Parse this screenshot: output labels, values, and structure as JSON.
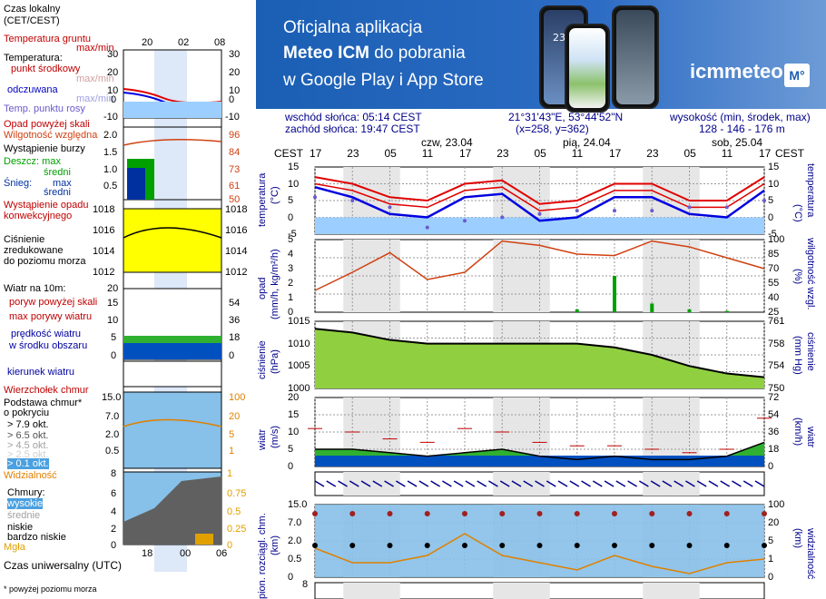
{
  "banner": {
    "line1": "Oficjalna aplikacja",
    "line2_bold": "Meteo ICM",
    "line2_rest": " do pobrania",
    "line3": "w Google Play i App Store",
    "logo_text": "icmmeteo",
    "logo_badge": "M°",
    "phone_temp": "23°",
    "bg_color": "#1f63b8"
  },
  "info": {
    "sunrise": "wschód słońca: 05:14 CEST",
    "sunset": "zachód słońca: 19:47 CEST",
    "coords": "21°31'43\"E, 53°44'52\"N",
    "grid": "(x=258,  y=362)",
    "height_label": "wysokość (min, środek, max)",
    "height_value": "128 - 146 - 176 m"
  },
  "time_axis": {
    "cest_label": "CEST",
    "hours": [
      "17",
      "23",
      "05",
      "11",
      "17",
      "23",
      "05",
      "11",
      "17",
      "23",
      "05",
      "11",
      "17"
    ],
    "days": [
      "czw, 23.04",
      "pią, 24.04",
      "sob, 25.04"
    ]
  },
  "legend": {
    "local_time": "Czas lokalny",
    "local_time_2": "(CET/CEST)",
    "top_ticks": [
      "20",
      "02",
      "08"
    ],
    "temp_ground": "Temperatura gruntu",
    "temp_ground_2": "max/min",
    "temperature": "Temperatura:",
    "mid_point": "punkt środkowy",
    "mid_point_2": "max/min",
    "feels": "odczuwana",
    "feels_2": "max/min",
    "dew": "Temp. punktu rosy",
    "temp_ticks": [
      "30",
      "20",
      "10",
      "0",
      "-10"
    ],
    "precip_over": "Opad powyżej skali",
    "humidity": "Wilgotność względna",
    "storm": "Wystąpienie burzy",
    "rain": "Deszcz: max",
    "rain_mid": "średni",
    "snow": "Śnieg:",
    "snow_max": "max",
    "snow_mid": "średni",
    "precip_occ": "Wystąpienie opadu",
    "precip_occ_2": "konwekcyjnego",
    "precip_ticks": [
      "2.0",
      "1.5",
      "1.0",
      "0.5"
    ],
    "hum_ticks": [
      "96",
      "84",
      "73",
      "61",
      "50"
    ],
    "pressure": "Ciśnienie",
    "pressure_2": "zredukowane",
    "pressure_3": "do poziomu morza",
    "press_ticks": [
      "1018",
      "1016",
      "1014",
      "1012"
    ],
    "wind_at": "Wiatr na 10m:",
    "gust_over": "poryw powyżej skali",
    "gust_max": "max porywy wiatru",
    "wind_speed": "prędkość wiatru",
    "wind_speed_2": "w środku obszaru",
    "wind_ticks": [
      "20",
      "15",
      "10",
      "5",
      "0"
    ],
    "wind_ticks_r": [
      "72",
      "54",
      "36",
      "18",
      "0"
    ],
    "wind_dir": "kierunek wiatru",
    "cloud_top": "Wierzchołek chmur",
    "cloud_base": "Podstawa chmur*",
    "cloud_base_2": "o pokryciu",
    "okt1": "> 7.9 okt.",
    "okt2": "> 6.5 okt.",
    "okt3": "> 4.5 okt.",
    "okt4": "> 2.5 okt.",
    "okt5": "> 0.1 okt.",
    "visibility": "Widzialność",
    "cb_ticks": [
      "15.0",
      "7.0",
      "2.0",
      "0.5"
    ],
    "cb_ticks_r": [
      "100",
      "20",
      "5",
      "1"
    ],
    "clouds": "Chmury:",
    "high": "wysokie",
    "mid": "średnie",
    "low": "niskie",
    "very_low": "bardzo niskie",
    "fog": "Mgła",
    "cl_ticks": [
      "8",
      "6",
      "4",
      "2",
      "0"
    ],
    "cl_ticks_r": [
      "1",
      "0.75",
      "0.5",
      "0.25",
      "0"
    ],
    "utc": "Czas uniwersalny (UTC)",
    "bottom_ticks": [
      "18",
      "00",
      "06"
    ],
    "footnote": "* powyżej poziomu morza"
  },
  "panels": {
    "temp": {
      "yl": "temperatura",
      "yl_unit": "(°C)",
      "yr": "(°C)",
      "yr2": "temperatura",
      "ticks": [
        "15",
        "10",
        "5",
        "0",
        "-5"
      ],
      "ticks_r": [
        "15",
        "10",
        "5",
        "0",
        "-5"
      ]
    },
    "precip": {
      "yl": "opad",
      "yl_unit": "(mm/h, kg/m²/h)",
      "yr": "(%)",
      "yr2": "wilgotność wzgl.",
      "ticks": [
        "5",
        "4",
        "3",
        "2",
        "1",
        "0"
      ],
      "ticks_r": [
        "100",
        "85",
        "70",
        "55",
        "40",
        "25"
      ]
    },
    "press": {
      "yl": "ciśnienie",
      "yl_unit": "(hPa)",
      "yr": "(mm Hg)",
      "yr2": "ciśnienie",
      "ticks": [
        "1015",
        "1010",
        "1005",
        "1000"
      ],
      "ticks_r": [
        "761",
        "758",
        "754",
        "750"
      ]
    },
    "wind": {
      "yl": "wiatr",
      "yl_unit": "(m/s)",
      "yr": "(km/h)",
      "yr2": "wiatr",
      "ticks": [
        "20",
        "15",
        "10",
        "5",
        "0"
      ],
      "ticks_r": [
        "72",
        "54",
        "36",
        "18",
        "0"
      ]
    },
    "cloud": {
      "yl": "pion. rozciągl. chm.",
      "yl_unit": "(km)",
      "yr": "(km)",
      "yr2": "widzialność",
      "ticks": [
        "15.0",
        "7.0",
        "2.0",
        "0.5",
        "0"
      ],
      "ticks_r": [
        "100",
        "20",
        "5",
        "1",
        "0"
      ]
    },
    "cl": {
      "tick": "8"
    }
  },
  "chart_data": [
    {
      "type": "line",
      "title": "temperatura",
      "ylabel": "temperatura (°C)",
      "ylim": [
        -5,
        15
      ],
      "x_hours_from_start": [
        0,
        6,
        12,
        18,
        24,
        30,
        36,
        42,
        48,
        54,
        60,
        66,
        72
      ],
      "series": [
        {
          "name": "Temperatura punkt środkowy",
          "values": [
            10,
            8,
            4,
            3,
            8,
            9,
            2,
            3,
            8,
            8,
            3,
            3,
            10
          ]
        },
        {
          "name": "Temperatura max",
          "values": [
            12,
            10,
            6,
            5,
            10,
            11,
            4,
            5,
            10,
            10,
            5,
            5,
            12
          ]
        },
        {
          "name": "odczuwana",
          "values": [
            9,
            6,
            1,
            0,
            6,
            7,
            -1,
            0,
            6,
            6,
            1,
            0,
            8
          ]
        },
        {
          "name": "Temp. punktu rosy",
          "values": [
            6,
            5,
            3,
            -3,
            -1,
            0,
            1,
            2,
            2,
            2,
            3,
            3,
            5
          ]
        }
      ]
    },
    {
      "type": "line",
      "title": "opad / wilgotność",
      "ylim": [
        0,
        5
      ],
      "series": [
        {
          "name": "Wilgotność względna",
          "values": [
            30,
            55,
            82,
            45,
            55,
            98,
            92,
            80,
            78,
            98,
            90,
            75,
            60
          ]
        },
        {
          "name": "Deszcz: max",
          "values": [
            0,
            0,
            0,
            0,
            0,
            0,
            0,
            0.2,
            2.5,
            0.6,
            0.2,
            0.1,
            0
          ]
        }
      ]
    },
    {
      "type": "area",
      "title": "ciśnienie",
      "ylabel": "ciśnienie (hPa)",
      "ylim": [
        1000,
        1018
      ],
      "series": [
        {
          "name": "Ciśnienie",
          "values": [
            1016,
            1015,
            1013,
            1012,
            1012,
            1012,
            1012,
            1012,
            1011,
            1009,
            1006,
            1004,
            1003
          ]
        }
      ]
    },
    {
      "type": "area",
      "title": "wiatr",
      "ylabel": "wiatr (m/s)",
      "ylim": [
        0,
        20
      ],
      "series": [
        {
          "name": "prędkość wiatru",
          "values": [
            5,
            5,
            4,
            3,
            4,
            5,
            3,
            2,
            3,
            2,
            2,
            3,
            7
          ]
        },
        {
          "name": "max porywy wiatru",
          "values": [
            11,
            10,
            8,
            7,
            11,
            10,
            7,
            6,
            6,
            5,
            4,
            5,
            14
          ]
        }
      ]
    },
    {
      "type": "line",
      "title": "Widzialność",
      "ylim": [
        0,
        100
      ],
      "series": [
        {
          "name": "Widzialność",
          "values": [
            40,
            20,
            20,
            30,
            60,
            30,
            20,
            10,
            30,
            15,
            5,
            20,
            25
          ]
        }
      ]
    }
  ],
  "colors": {
    "temp_red": "#e00000",
    "temp_blue": "#0000e0",
    "dew": "#6a5acd",
    "humidity": "#d04010",
    "rain": "#00a000",
    "press_yellow": "#ffff00",
    "press_green": "#90d040",
    "wind_blue": "#0050c0",
    "wind_green": "#30b030",
    "cloud_bg": "#87c0e8",
    "night": "#d0d0d0"
  }
}
